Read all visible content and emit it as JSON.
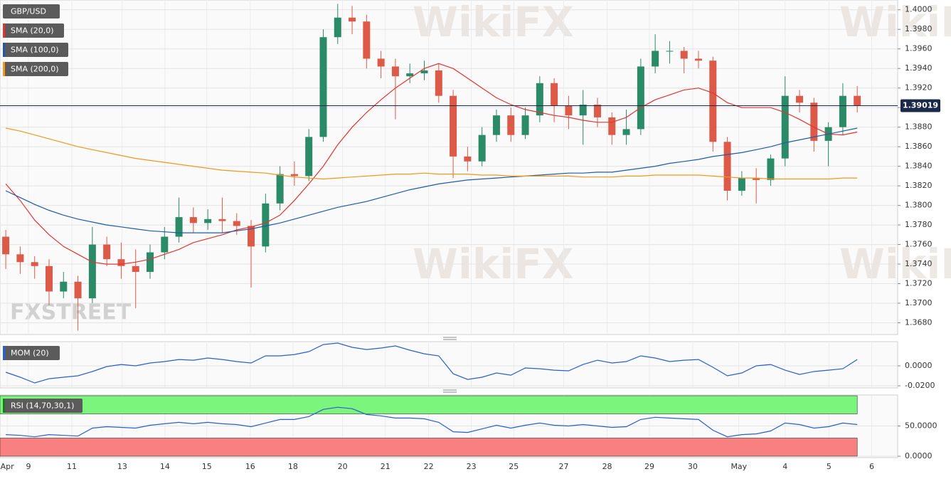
{
  "watermark": "WikiFX",
  "logo": "FXSTREET",
  "chart_data": [
    {
      "type": "candlestick",
      "title": "GBP/USD",
      "up_color": "#2b8a68",
      "down_color": "#dd5a49",
      "open": [
        1.3768,
        1.375,
        1.3742,
        1.3738,
        1.3712,
        1.3722,
        1.3705,
        1.376,
        1.3745,
        1.3738,
        1.3732,
        1.3752,
        1.3768,
        1.3788,
        1.3782,
        1.3786,
        1.3784,
        1.3779,
        1.3758,
        1.3802,
        1.3832,
        1.383,
        1.387,
        1.3972,
        1.3992,
        1.3988,
        1.395,
        1.3942,
        1.3932,
        1.3935,
        1.3938,
        1.3912,
        1.385,
        1.3845,
        1.3872,
        1.3892,
        1.3872,
        1.3892,
        1.3925,
        1.3902,
        1.3892,
        1.3903,
        1.389,
        1.3872,
        1.3878,
        1.3942,
        1.3958,
        1.3958,
        1.395,
        1.3948,
        1.3865,
        1.3815,
        1.3828,
        1.3826,
        1.3848,
        1.3912,
        1.3905,
        1.3866,
        1.388,
        1.3912
      ],
      "high": [
        1.3775,
        1.3758,
        1.3748,
        1.3745,
        1.3732,
        1.3728,
        1.3778,
        1.3768,
        1.3762,
        1.3755,
        1.376,
        1.3778,
        1.3808,
        1.3798,
        1.3796,
        1.3808,
        1.3792,
        1.3785,
        1.3812,
        1.384,
        1.3845,
        1.3878,
        1.398,
        1.4006,
        1.4004,
        1.3995,
        1.3958,
        1.395,
        1.3945,
        1.3948,
        1.3945,
        1.3918,
        1.386,
        1.388,
        1.3898,
        1.39,
        1.39,
        1.3932,
        1.393,
        1.3912,
        1.3918,
        1.391,
        1.3895,
        1.3898,
        1.395,
        1.3975,
        1.3968,
        1.3962,
        1.3958,
        1.3952,
        1.387,
        1.3835,
        1.3838,
        1.3852,
        1.3932,
        1.3918,
        1.391,
        1.3885,
        1.3925,
        1.3922
      ],
      "low": [
        1.3735,
        1.373,
        1.3725,
        1.3698,
        1.3705,
        1.3672,
        1.37,
        1.3738,
        1.3725,
        1.3695,
        1.3725,
        1.3745,
        1.3762,
        1.3772,
        1.3775,
        1.3772,
        1.377,
        1.3716,
        1.3752,
        1.3795,
        1.382,
        1.3825,
        1.3865,
        1.3965,
        1.3975,
        1.394,
        1.393,
        1.3888,
        1.3925,
        1.3928,
        1.3905,
        1.3828,
        1.3835,
        1.384,
        1.3865,
        1.3865,
        1.3868,
        1.3885,
        1.3885,
        1.3878,
        1.3862,
        1.388,
        1.3862,
        1.3862,
        1.3872,
        1.3935,
        1.3945,
        1.3935,
        1.394,
        1.3855,
        1.3805,
        1.381,
        1.3802,
        1.382,
        1.384,
        1.3895,
        1.3855,
        1.384,
        1.3872,
        1.3895
      ],
      "close": [
        1.375,
        1.3742,
        1.3738,
        1.3712,
        1.3722,
        1.3705,
        1.376,
        1.3745,
        1.3738,
        1.3732,
        1.3752,
        1.3768,
        1.3788,
        1.3782,
        1.3786,
        1.3784,
        1.3779,
        1.3758,
        1.3802,
        1.3832,
        1.383,
        1.387,
        1.3972,
        1.3992,
        1.3988,
        1.395,
        1.3942,
        1.3932,
        1.3935,
        1.3938,
        1.3912,
        1.385,
        1.3845,
        1.3872,
        1.3892,
        1.3872,
        1.3892,
        1.3925,
        1.3902,
        1.3892,
        1.3903,
        1.389,
        1.3872,
        1.3878,
        1.3942,
        1.3958,
        1.3958,
        1.395,
        1.3948,
        1.3865,
        1.3815,
        1.3828,
        1.3826,
        1.3848,
        1.3912,
        1.3905,
        1.3866,
        1.388,
        1.3912,
        1.39019
      ],
      "series": [
        {
          "name": "SMA (20,0)",
          "color": "#e3342f",
          "values": [
            1.3822,
            1.3805,
            1.3785,
            1.377,
            1.3758,
            1.375,
            1.3742,
            1.374,
            1.374,
            1.3742,
            1.3745,
            1.375,
            1.3755,
            1.3762,
            1.3766,
            1.377,
            1.3775,
            1.3778,
            1.3782,
            1.379,
            1.3805,
            1.3822,
            1.384,
            1.3862,
            1.388,
            1.3895,
            1.3908,
            1.392,
            1.393,
            1.394,
            1.3945,
            1.394,
            1.393,
            1.392,
            1.391,
            1.3903,
            1.3898,
            1.3895,
            1.3892,
            1.389,
            1.3887,
            1.3885,
            1.3885,
            1.389,
            1.39,
            1.3908,
            1.3913,
            1.3918,
            1.392,
            1.3915,
            1.3905,
            1.39,
            1.39,
            1.39,
            1.3895,
            1.3888,
            1.388,
            1.3873,
            1.3872,
            1.3875
          ]
        },
        {
          "name": "SMA (100,0)",
          "color": "#1f5ca6",
          "values": [
            1.3815,
            1.3808,
            1.3801,
            1.3795,
            1.379,
            1.3786,
            1.3783,
            1.378,
            1.3778,
            1.3776,
            1.3774,
            1.3773,
            1.3772,
            1.3772,
            1.3772,
            1.3772,
            1.3774,
            1.3776,
            1.3779,
            1.3782,
            1.3786,
            1.379,
            1.3794,
            1.3798,
            1.3801,
            1.3804,
            1.3808,
            1.3812,
            1.3816,
            1.3819,
            1.3822,
            1.3824,
            1.3826,
            1.3827,
            1.3828,
            1.3829,
            1.383,
            1.3831,
            1.3832,
            1.3833,
            1.3833,
            1.3834,
            1.3834,
            1.3836,
            1.3838,
            1.384,
            1.3843,
            1.3845,
            1.3847,
            1.385,
            1.3852,
            1.3854,
            1.3857,
            1.386,
            1.3864,
            1.3867,
            1.387,
            1.3873,
            1.3876,
            1.3879
          ]
        },
        {
          "name": "SMA (200,0)",
          "color": "#f0991c",
          "values": [
            1.3879,
            1.3876,
            1.3872,
            1.3868,
            1.3864,
            1.386,
            1.3857,
            1.3854,
            1.3851,
            1.3848,
            1.3846,
            1.3844,
            1.3842,
            1.384,
            1.3838,
            1.3836,
            1.3835,
            1.3834,
            1.3833,
            1.3831,
            1.3829,
            1.3828,
            1.3827,
            1.3828,
            1.3829,
            1.383,
            1.3831,
            1.3832,
            1.3832,
            1.3833,
            1.3832,
            1.3832,
            1.3832,
            1.3831,
            1.3831,
            1.383,
            1.383,
            1.383,
            1.383,
            1.383,
            1.3829,
            1.3829,
            1.3829,
            1.383,
            1.383,
            1.3831,
            1.3831,
            1.3831,
            1.3831,
            1.383,
            1.3829,
            1.3828,
            1.3828,
            1.3827,
            1.3827,
            1.3827,
            1.3827,
            1.3827,
            1.3828,
            1.3828
          ]
        }
      ],
      "ylim": [
        1.3668,
        1.401
      ],
      "yticks": [
        {
          "value": 1.368,
          "label": "1.3680"
        },
        {
          "value": 1.37,
          "label": "1.3700"
        },
        {
          "value": 1.372,
          "label": "1.3720"
        },
        {
          "value": 1.374,
          "label": "1.3740"
        },
        {
          "value": 1.376,
          "label": "1.3760"
        },
        {
          "value": 1.378,
          "label": "1.3780"
        },
        {
          "value": 1.38,
          "label": "1.3800"
        },
        {
          "value": 1.382,
          "label": "1.3820"
        },
        {
          "value": 1.384,
          "label": "1.3840"
        },
        {
          "value": 1.386,
          "label": "1.3860"
        },
        {
          "value": 1.388,
          "label": "1.3880"
        },
        {
          "value": 1.39,
          "label": "1.3900"
        },
        {
          "value": 1.392,
          "label": "1.3920"
        },
        {
          "value": 1.394,
          "label": "1.3940"
        },
        {
          "value": 1.396,
          "label": "1.3960"
        },
        {
          "value": 1.398,
          "label": "1.3980"
        },
        {
          "value": 1.4,
          "label": "1.4000"
        }
      ],
      "grid": true
    },
    {
      "type": "line",
      "series": [
        {
          "name": "MOM (20)",
          "color": "#2a5fd0",
          "values": [
            -0.0064,
            -0.0114,
            -0.0171,
            -0.0129,
            -0.0114,
            -0.01,
            -0.0057,
            -0.0007,
            0.0014,
            0.0,
            0.0029,
            0.0043,
            0.0064,
            0.0057,
            0.0079,
            0.0064,
            0.0043,
            0.0029,
            0.01,
            0.01,
            0.0114,
            0.0143,
            0.0214,
            0.0229,
            0.0186,
            0.0164,
            0.0179,
            0.02,
            0.0157,
            0.0121,
            0.01,
            -0.0079,
            -0.0136,
            -0.0114,
            -0.0071,
            -0.0093,
            -0.0021,
            -0.0029,
            -0.0043,
            -0.005,
            0.0014,
            0.0057,
            0.0029,
            0.0043,
            0.01,
            0.0079,
            0.0043,
            0.0057,
            0.0064,
            -0.0014,
            -0.01,
            -0.0071,
            0.0,
            0.0014,
            -0.0043,
            -0.0086,
            -0.0057,
            -0.0043,
            -0.0029,
            0.0064
          ]
        }
      ],
      "ylim": [
        -0.0221,
        0.0243
      ],
      "yticks": [
        {
          "value": 0,
          "label": "0.0000"
        },
        {
          "value": -0.02,
          "label": "-0.0200"
        }
      ],
      "grid": true
    },
    {
      "type": "line",
      "series": [
        {
          "name": "RSI (14,70,30,1)",
          "color": "#2a5fd0",
          "values": [
            35.7,
            34.5,
            32.1,
            35.7,
            34.5,
            33.3,
            46.4,
            48.8,
            47.6,
            46.4,
            51.2,
            53.6,
            56.0,
            53.6,
            56.0,
            53.6,
            52.4,
            48.8,
            54.8,
            60.7,
            60.7,
            65.5,
            77.4,
            80.9,
            78.6,
            69.0,
            66.7,
            63.1,
            63.1,
            61.9,
            56.0,
            40.5,
            39.3,
            45.2,
            51.2,
            46.4,
            51.2,
            54.8,
            51.2,
            50.0,
            52.4,
            50.0,
            47.6,
            48.8,
            60.7,
            64.3,
            63.1,
            61.9,
            60.7,
            42.9,
            32.1,
            35.7,
            36.9,
            41.7,
            54.8,
            52.4,
            46.4,
            48.8,
            54.8,
            52.4
          ]
        }
      ],
      "bands": [
        {
          "from": 70,
          "to": 100,
          "color": "#7cf57c"
        },
        {
          "from": 0,
          "to": 30,
          "color": "#f98080"
        }
      ],
      "ylim": [
        -2.4,
        101.2
      ],
      "yticks": [
        {
          "value": 50,
          "label": "50.0000"
        },
        {
          "value": 0,
          "label": "0.0000"
        }
      ],
      "xlim": [
        -0.4,
        61.8
      ],
      "xticks": [
        {
          "value": 0.1,
          "label": "Apr"
        },
        {
          "value": 1.57,
          "label": "9"
        },
        {
          "value": 4.58,
          "label": "11"
        },
        {
          "value": 8.07,
          "label": "13"
        },
        {
          "value": 11.03,
          "label": "14"
        },
        {
          "value": 13.93,
          "label": "15"
        },
        {
          "value": 16.94,
          "label": "16"
        },
        {
          "value": 19.9,
          "label": "18"
        },
        {
          "value": 23.34,
          "label": "20"
        },
        {
          "value": 26.3,
          "label": "21"
        },
        {
          "value": 29.3,
          "label": "22"
        },
        {
          "value": 32.26,
          "label": "23"
        },
        {
          "value": 35.2,
          "label": "25"
        },
        {
          "value": 38.66,
          "label": "27"
        },
        {
          "value": 41.67,
          "label": "28"
        },
        {
          "value": 44.6,
          "label": "29"
        },
        {
          "value": 47.6,
          "label": "30"
        },
        {
          "value": 50.8,
          "label": "May"
        },
        {
          "value": 54.0,
          "label": "4"
        },
        {
          "value": 57.04,
          "label": "5"
        },
        {
          "value": 60.0,
          "label": "6"
        }
      ],
      "grid": true
    }
  ]
}
